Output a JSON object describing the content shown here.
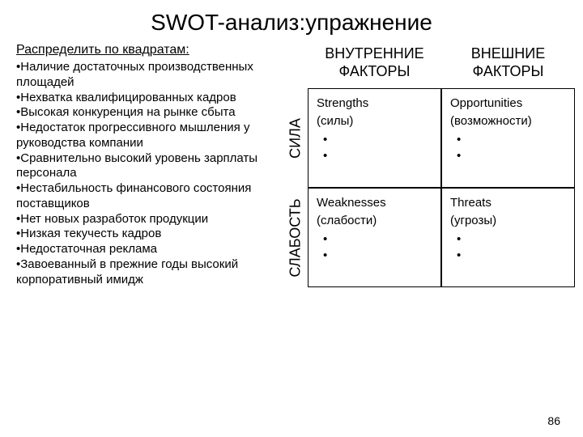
{
  "title": "SWOT-анализ:упражнение",
  "subtitle": "Распределить по квадратам:",
  "items": [
    "•Наличие достаточных производственных площадей",
    "•Нехватка квалифицированных кадров",
    "•Высокая конкуренция на рынке сбыта",
    "•Недостаток прогрессивного мышления у руководства компании",
    "•Сравнительно высокий уровень зарплаты персонала",
    "•Нестабильность финансового состояния поставщиков",
    "•Нет новых разработок продукции",
    "•Низкая текучесть кадров",
    "•Недостаточная реклама",
    "•Завоеванный в прежние годы высокий корпоративный имидж"
  ],
  "col_headers": {
    "internal": {
      "line1": "ВНУТРЕННИЕ",
      "line2": "ФАКТОРЫ"
    },
    "external": {
      "line1": "ВНЕШНИЕ",
      "line2": "ФАКТОРЫ"
    }
  },
  "row_labels": {
    "strength": "СИЛА",
    "weakness": "СЛАБОСТЬ"
  },
  "cells": {
    "strengths": {
      "title": "Strengths",
      "sub": "(силы)",
      "bullets": [
        "•",
        "•"
      ]
    },
    "opportunities": {
      "title": "Opportunities",
      "sub": "(возможности)",
      "bullets": [
        "•",
        "•"
      ]
    },
    "weaknesses": {
      "title": "Weaknesses",
      "sub": "(слабости)",
      "bullets": [
        "•",
        "•"
      ]
    },
    "threats": {
      "title": "Threats",
      "sub": "(угрозы)",
      "bullets": [
        "•",
        "•"
      ]
    }
  },
  "page_number": "86",
  "colors": {
    "background": "#ffffff",
    "text": "#000000",
    "border": "#000000"
  },
  "typography": {
    "title_fontsize": 28,
    "body_fontsize": 15,
    "header_fontsize": 18
  }
}
